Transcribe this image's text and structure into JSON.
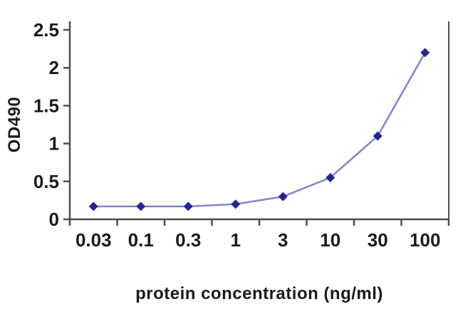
{
  "chart_data": {
    "type": "line",
    "title": "",
    "xlabel": "protein concentration (ng/ml)",
    "ylabel": "OD490",
    "categories": [
      "0.03",
      "0.1",
      "0.3",
      "1",
      "3",
      "10",
      "30",
      "100"
    ],
    "values": [
      0.17,
      0.17,
      0.17,
      0.2,
      0.3,
      0.55,
      1.1,
      2.2
    ],
    "ylim": [
      0,
      2.5
    ],
    "y_ticks": [
      0,
      0.5,
      1,
      1.5,
      2,
      2.5
    ],
    "y_tick_labels": [
      "0",
      "0.5",
      "1",
      "1.5",
      "2",
      "2.5"
    ],
    "grid": false,
    "legend": null,
    "marker": "diamond",
    "colors": {
      "line": "#8383cb",
      "marker": "#26268c",
      "axis": "#4d4d4d",
      "text": "#1a1a1a",
      "background": "#ffffff"
    }
  }
}
